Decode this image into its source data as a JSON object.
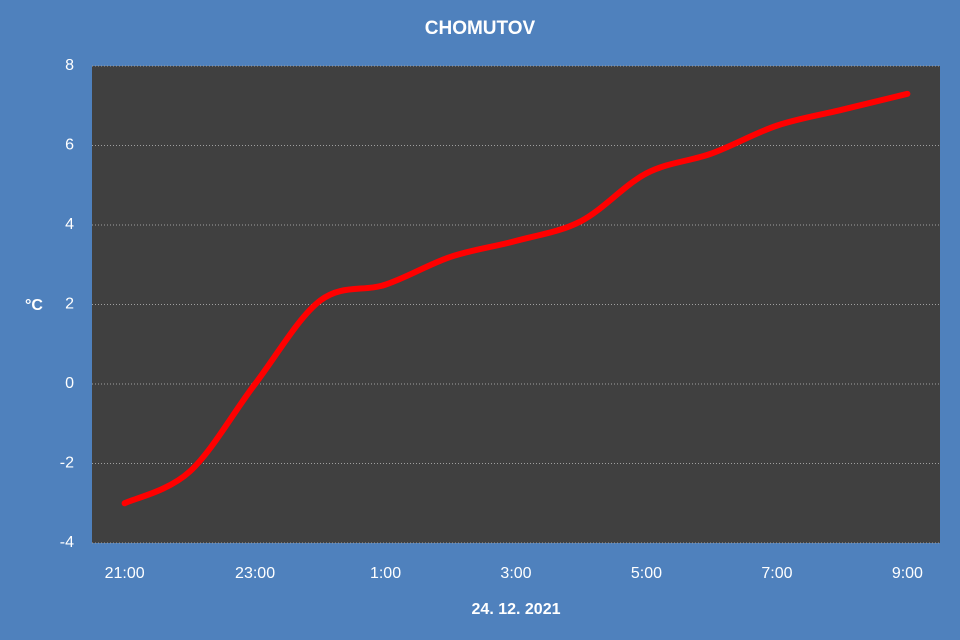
{
  "chart_data": {
    "type": "line",
    "title": "CHOMUTOV",
    "y_label": "°C",
    "x_label": "24. 12. 2021",
    "categories": [
      "21:00",
      null,
      "23:00",
      null,
      "1:00",
      null,
      "3:00",
      null,
      "5:00",
      null,
      "7:00",
      null,
      "9:00"
    ],
    "values": [
      -3.0,
      -2.2,
      0.0,
      2.1,
      2.5,
      3.2,
      3.6,
      4.1,
      5.3,
      5.8,
      6.5,
      6.9,
      7.3
    ],
    "color": "#ff0000",
    "ylim": [
      -4,
      8
    ],
    "yticks": [
      -4,
      -2,
      0,
      2,
      4,
      6,
      8
    ],
    "grid": true
  }
}
